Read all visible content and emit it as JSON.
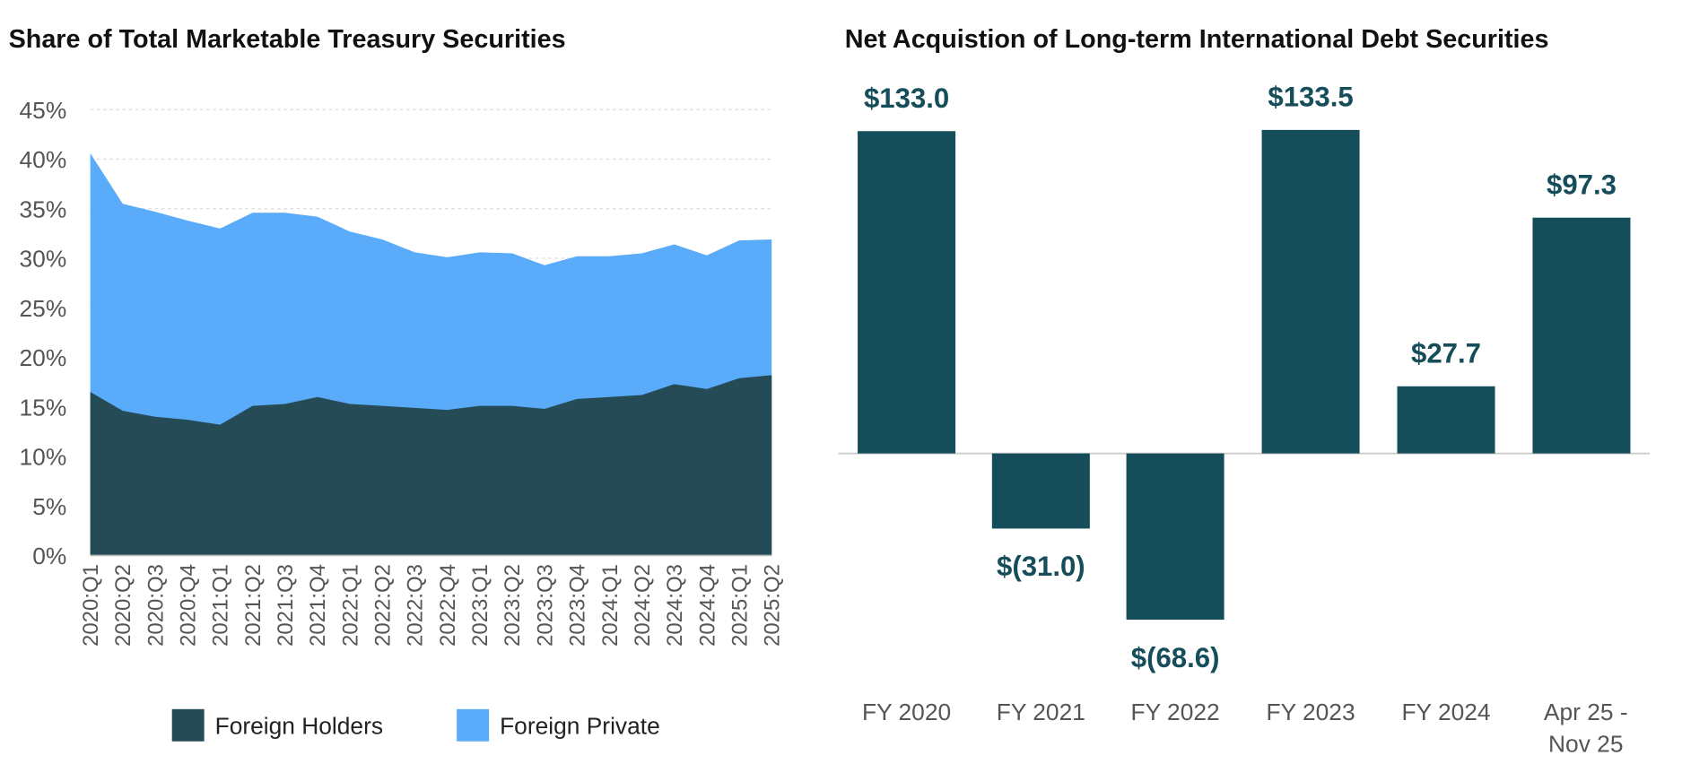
{
  "colors": {
    "foreign_holders": "#254B57",
    "foreign_private": "#5AABF9",
    "bars": "#154E5A",
    "bar_labels": "#154E5A",
    "grid": "#dddddd"
  },
  "chart_data": [
    {
      "type": "area",
      "stacked": false,
      "title": "Share of Total Marketable Treasury Securities",
      "xlabel": "",
      "ylabel": "",
      "ylim": [
        0,
        45
      ],
      "yticks": [
        "0%",
        "5%",
        "10%",
        "15%",
        "20%",
        "25%",
        "30%",
        "35%",
        "40%",
        "45%"
      ],
      "grid": "horizontal dashed",
      "legend": "bottom",
      "categories": [
        "2020:Q1",
        "2020:Q2",
        "2020:Q3",
        "2020:Q4",
        "2021:Q1",
        "2021:Q2",
        "2021:Q3",
        "2021:Q4",
        "2022:Q1",
        "2022:Q2",
        "2022:Q3",
        "2022:Q4",
        "2023:Q1",
        "2023:Q2",
        "2023:Q3",
        "2023:Q4",
        "2024:Q1",
        "2024:Q2",
        "2024:Q3",
        "2024:Q4",
        "2025:Q1",
        "2025:Q2"
      ],
      "series": [
        {
          "name": "Foreign Private",
          "values": [
            40.6,
            35.5,
            34.7,
            33.8,
            33.0,
            34.6,
            34.6,
            34.2,
            32.7,
            31.9,
            30.6,
            30.1,
            30.6,
            30.5,
            29.3,
            30.2,
            30.2,
            30.5,
            31.4,
            30.3,
            31.8,
            31.9
          ]
        },
        {
          "name": "Foreign Holders",
          "values": [
            16.5,
            14.6,
            14.0,
            13.7,
            13.2,
            15.1,
            15.3,
            16.0,
            15.3,
            15.1,
            14.9,
            14.7,
            15.1,
            15.1,
            14.8,
            15.8,
            16.0,
            16.2,
            17.3,
            16.8,
            17.9,
            18.2
          ]
        }
      ],
      "legend_entries": [
        "Foreign Holders",
        "Foreign Private"
      ]
    },
    {
      "type": "bar",
      "title": "Net Acquistion of Long-term International Debt Securities",
      "xlabel": "",
      "ylabel": "",
      "categories": [
        [
          "FY 2020"
        ],
        [
          "FY 2021"
        ],
        [
          "FY 2022"
        ],
        [
          "FY 2023"
        ],
        [
          "FY 2024"
        ],
        [
          "Apr 25 -",
          "Nov 25"
        ]
      ],
      "values": [
        133.0,
        -31.0,
        -68.6,
        133.5,
        27.7,
        97.3
      ],
      "data_labels": [
        "$133.0",
        "$(31.0)",
        "$(68.6)",
        "$133.5",
        "$27.7",
        "$97.3"
      ],
      "grid": false
    }
  ]
}
